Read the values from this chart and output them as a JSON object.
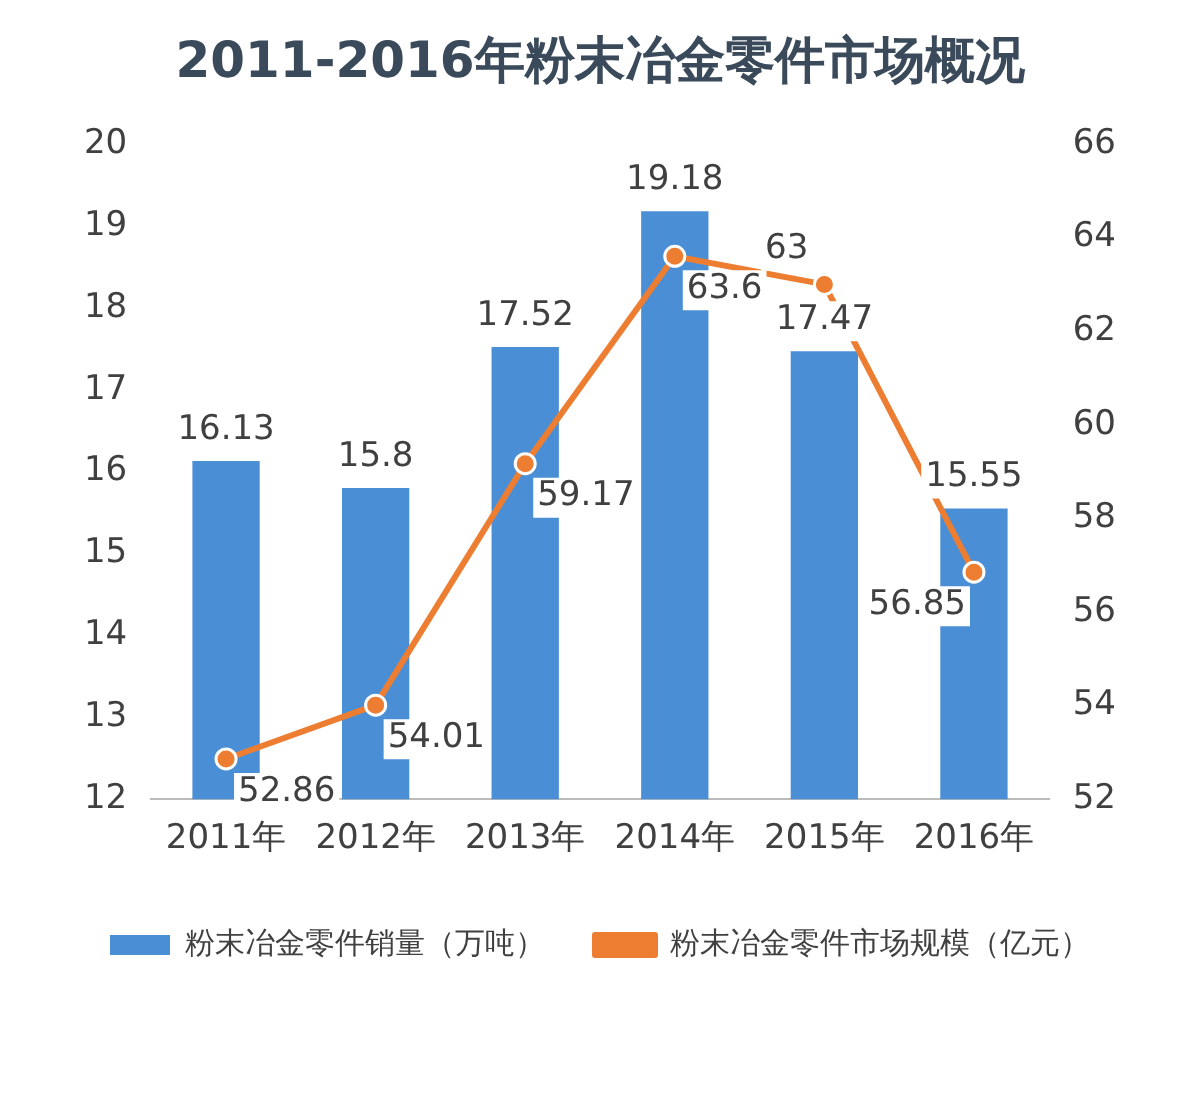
{
  "chart_data": {
    "type": "bar",
    "title": "2011-2016年粉末冶金零件市场概况",
    "categories": [
      "2011年",
      "2012年",
      "2013年",
      "2014年",
      "2015年",
      "2016年"
    ],
    "series": [
      {
        "name": "粉末冶金零件销量（万吨）",
        "color": "#4a8fd6",
        "values": [
          16.13,
          15.8,
          17.52,
          19.18,
          17.47,
          15.55
        ]
      },
      {
        "name": "粉末冶金零件市场规模（亿元）",
        "type": "line",
        "axis": "y2",
        "color": "#ed7d31",
        "values": [
          52.86,
          54.01,
          59.17,
          63.6,
          63,
          56.85
        ]
      }
    ],
    "ylim": [
      12,
      20
    ],
    "yticks": [
      12,
      13,
      14,
      15,
      16,
      17,
      18,
      19,
      20
    ],
    "y2lim": [
      52,
      66
    ],
    "y2ticks": [
      52,
      54,
      56,
      58,
      60,
      62,
      64,
      66
    ],
    "grid": false,
    "legend": "bottom",
    "marker": "circle",
    "line_style": "solid",
    "data_labels": true
  }
}
